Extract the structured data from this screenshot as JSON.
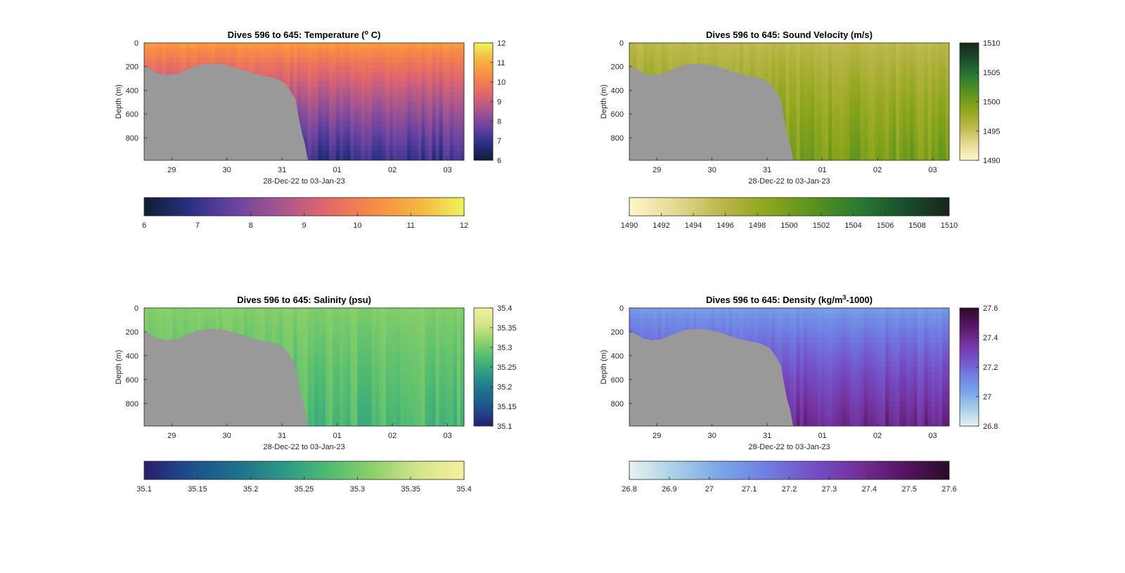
{
  "figure": {
    "background": "#ffffff",
    "land_color": "#999999"
  },
  "chart_data": [
    {
      "type": "heatmap",
      "variable": "temperature",
      "title": "Dives 596 to 645: Temperature (",
      "title_sup": "o",
      "title_end": " C)",
      "xlabel": "28-Dec-22 to 03-Jan-23",
      "ylabel": "Depth (m)",
      "x_tick_labels": [
        "29",
        "30",
        "31",
        "01",
        "02",
        "03"
      ],
      "y_tick_labels": [
        "0",
        "200",
        "400",
        "600",
        "800"
      ],
      "ylim": [
        0,
        990
      ],
      "colorbar_side": {
        "range": [
          6,
          12
        ],
        "ticks": [
          "6",
          "7",
          "8",
          "9",
          "10",
          "11",
          "12"
        ]
      },
      "colorbar_bottom": {
        "range": [
          6,
          12
        ],
        "ticks": [
          "6",
          "7",
          "8",
          "9",
          "10",
          "11",
          "12"
        ]
      },
      "colormap": [
        "#0f1d33",
        "#2a2f85",
        "#6a44a0",
        "#a8568e",
        "#e2686a",
        "#f68a45",
        "#f5b540",
        "#eef45a"
      ],
      "profile": {
        "surface": 10.7,
        "deep": 7.0
      }
    },
    {
      "type": "heatmap",
      "variable": "sound_velocity",
      "title": "Dives 596 to 645: Sound Velocity (m/s)",
      "title_sup": "",
      "title_end": "",
      "xlabel": "28-Dec-22 to 03-Jan-23",
      "ylabel": "Depth (m)",
      "x_tick_labels": [
        "29",
        "30",
        "31",
        "01",
        "02",
        "03"
      ],
      "y_tick_labels": [
        "0",
        "200",
        "400",
        "600",
        "800"
      ],
      "ylim": [
        0,
        990
      ],
      "colorbar_side": {
        "range": [
          1490,
          1510
        ],
        "ticks": [
          "1490",
          "1495",
          "1500",
          "1505",
          "1510"
        ]
      },
      "colorbar_bottom": {
        "range": [
          1490,
          1510
        ],
        "ticks": [
          "1490",
          "1492",
          "1494",
          "1496",
          "1498",
          "1500",
          "1502",
          "1504",
          "1506",
          "1508",
          "1510"
        ]
      },
      "colormap": [
        "#fdf6cc",
        "#e6d992",
        "#bcb74a",
        "#8ea61c",
        "#5b931e",
        "#2a7c30",
        "#1a4f2d",
        "#172619"
      ],
      "profile": {
        "surface": 1495.5,
        "deep": 1499.8
      }
    },
    {
      "type": "heatmap",
      "variable": "salinity",
      "title": "Dives 596 to 645: Salinity (psu)",
      "title_sup": "",
      "title_end": "",
      "xlabel": "28-Dec-22 to 03-Jan-23",
      "ylabel": "Depth (m)",
      "x_tick_labels": [
        "29",
        "30",
        "31",
        "01",
        "02",
        "03"
      ],
      "y_tick_labels": [
        "0",
        "200",
        "400",
        "600",
        "800"
      ],
      "ylim": [
        0,
        990
      ],
      "colorbar_side": {
        "range": [
          35.1,
          35.4
        ],
        "ticks": [
          "35.1",
          "35.15",
          "35.2",
          "35.25",
          "35.3",
          "35.35",
          "35.4"
        ]
      },
      "colorbar_bottom": {
        "range": [
          35.1,
          35.4
        ],
        "ticks": [
          "35.1",
          "35.15",
          "35.2",
          "35.25",
          "35.3",
          "35.35",
          "35.4"
        ]
      },
      "colormap": [
        "#2a1c6e",
        "#1d4f8c",
        "#1e6f8c",
        "#2a9688",
        "#4dba72",
        "#8cd168",
        "#d4e48c",
        "#f6f09e"
      ],
      "profile": {
        "surface": 35.31,
        "deep": 35.27
      }
    },
    {
      "type": "heatmap",
      "variable": "density",
      "title": "Dives 596 to 645: Density (kg/m",
      "title_sup": "3",
      "title_end": "-1000)",
      "xlabel": "28-Dec-22 to 03-Jan-23",
      "ylabel": "Depth (m)",
      "x_tick_labels": [
        "29",
        "30",
        "31",
        "01",
        "02",
        "03"
      ],
      "y_tick_labels": [
        "0",
        "200",
        "400",
        "600",
        "800"
      ],
      "ylim": [
        0,
        990
      ],
      "colorbar_side": {
        "range": [
          26.8,
          27.6
        ],
        "ticks": [
          "26.8",
          "27",
          "27.2",
          "27.4",
          "27.6"
        ]
      },
      "colorbar_bottom": {
        "range": [
          26.8,
          27.6
        ],
        "ticks": [
          "26.8",
          "26.9",
          "27",
          "27.1",
          "27.2",
          "27.3",
          "27.4",
          "27.5",
          "27.6"
        ]
      },
      "colormap": [
        "#e7f3f2",
        "#a8d0e6",
        "#79a6e8",
        "#6f7ee2",
        "#7550c7",
        "#73309a",
        "#551560",
        "#2b0a2a"
      ],
      "profile": {
        "surface": 27.05,
        "deep": 27.4
      }
    }
  ]
}
